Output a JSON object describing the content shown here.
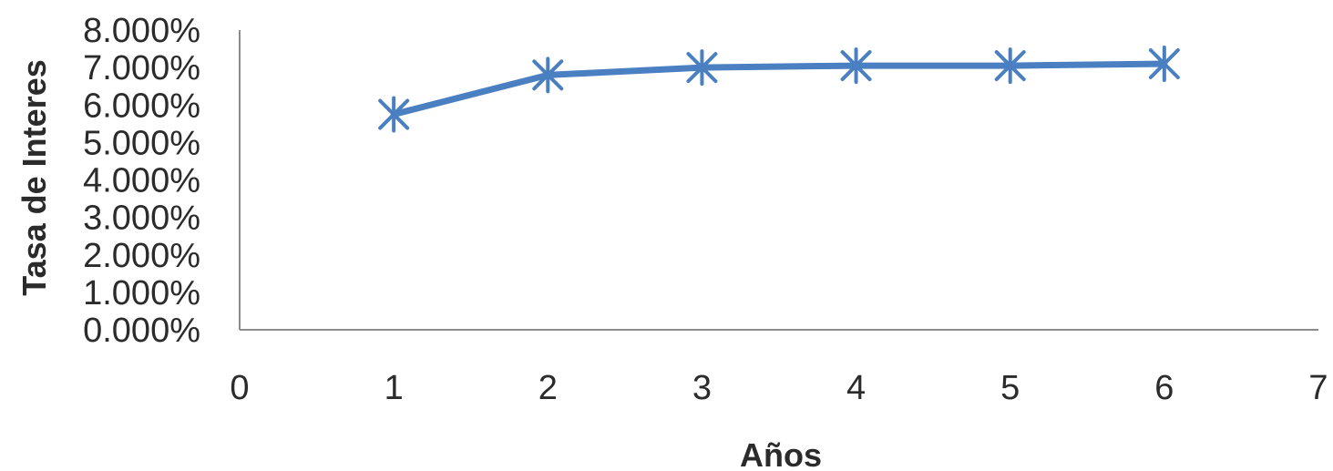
{
  "chart_data": {
    "type": "scatter",
    "xlabel": "Años",
    "ylabel": "Tasa de Interes",
    "xlim": [
      0,
      7
    ],
    "ylim": [
      0,
      8
    ],
    "x_ticks": [
      "0",
      "1",
      "2",
      "3",
      "4",
      "5",
      "6",
      "7"
    ],
    "y_ticks": [
      "0.000%",
      "1.000%",
      "2.000%",
      "3.000%",
      "4.000%",
      "5.000%",
      "6.000%",
      "7.000%",
      "8.000%"
    ],
    "grid": false,
    "legend": "none",
    "series": [
      {
        "x": [
          1,
          2,
          3,
          4,
          5,
          6
        ],
        "y": [
          5.75,
          6.8,
          7.0,
          7.05,
          7.05,
          7.1
        ],
        "marker": "asterisk",
        "line_style": "solid",
        "color": "#4a7fc1"
      }
    ]
  }
}
